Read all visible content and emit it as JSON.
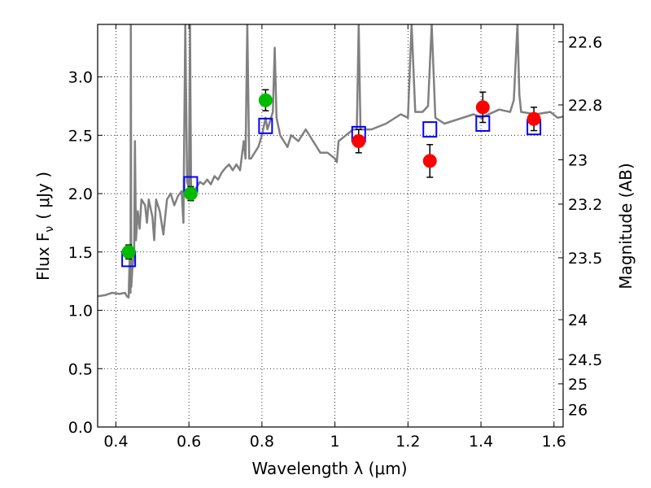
{
  "chart_data": {
    "type": "scatter",
    "xlabel": "Wavelength  λ (μm)",
    "ylabel": "Flux  F",
    "ylabel_sub": "ν",
    "ylabel_unit": "( μJy )",
    "y2label": "Magnitude (AB)",
    "xlim": [
      0.35,
      1.625
    ],
    "ylim": [
      0.0,
      3.45
    ],
    "grid": true,
    "x_ticks": [
      {
        "value": 0.4,
        "label": "0.4"
      },
      {
        "value": 0.6,
        "label": "0.6"
      },
      {
        "value": 0.8,
        "label": "0.8"
      },
      {
        "value": 1.0,
        "label": "1"
      },
      {
        "value": 1.2,
        "label": "1.2"
      },
      {
        "value": 1.4,
        "label": "1.4"
      },
      {
        "value": 1.6,
        "label": "1.6"
      }
    ],
    "y_ticks": [
      {
        "value": 0.0,
        "label": "0.0"
      },
      {
        "value": 0.5,
        "label": "0.5"
      },
      {
        "value": 1.0,
        "label": "1.0"
      },
      {
        "value": 1.5,
        "label": "1.5"
      },
      {
        "value": 2.0,
        "label": "2.0"
      },
      {
        "value": 2.5,
        "label": "2.5"
      },
      {
        "value": 3.0,
        "label": "3.0"
      }
    ],
    "y2_ticks": [
      {
        "flux": 3.3,
        "label": "22.6"
      },
      {
        "flux": 2.76,
        "label": "22.8"
      },
      {
        "flux": 2.29,
        "label": "23"
      },
      {
        "flux": 1.91,
        "label": "23.2"
      },
      {
        "flux": 1.45,
        "label": "23.5"
      },
      {
        "flux": 0.92,
        "label": "24"
      },
      {
        "flux": 0.58,
        "label": "24.5"
      },
      {
        "flux": 0.37,
        "label": "25"
      },
      {
        "flux": 0.15,
        "label": "26"
      }
    ],
    "series": [
      {
        "kind": "model-spectrum",
        "color": "#808080",
        "points": [
          [
            0.35,
            1.12
          ],
          [
            0.37,
            1.13
          ],
          [
            0.39,
            1.15
          ],
          [
            0.41,
            1.14
          ],
          [
            0.425,
            1.15
          ],
          [
            0.43,
            1.12
          ],
          [
            0.435,
            1.11
          ],
          [
            0.438,
            1.5
          ],
          [
            0.44,
            1.15
          ],
          [
            0.441,
            3.45
          ],
          [
            0.442,
            1.2
          ],
          [
            0.445,
            1.35
          ],
          [
            0.45,
            1.5
          ],
          [
            0.452,
            2.45
          ],
          [
            0.455,
            1.6
          ],
          [
            0.46,
            1.85
          ],
          [
            0.465,
            1.7
          ],
          [
            0.47,
            1.95
          ],
          [
            0.48,
            1.9
          ],
          [
            0.485,
            1.75
          ],
          [
            0.49,
            1.95
          ],
          [
            0.5,
            1.8
          ],
          [
            0.505,
            1.6
          ],
          [
            0.51,
            1.95
          ],
          [
            0.52,
            1.85
          ],
          [
            0.53,
            1.65
          ],
          [
            0.54,
            1.95
          ],
          [
            0.55,
            2.0
          ],
          [
            0.56,
            1.9
          ],
          [
            0.57,
            1.98
          ],
          [
            0.58,
            2.02
          ],
          [
            0.585,
            1.75
          ],
          [
            0.59,
            3.45
          ],
          [
            0.595,
            2.1
          ],
          [
            0.6,
            2.05
          ],
          [
            0.603,
            3.45
          ],
          [
            0.606,
            2.05
          ],
          [
            0.61,
            2.0
          ],
          [
            0.62,
            2.05
          ],
          [
            0.63,
            2.1
          ],
          [
            0.64,
            2.08
          ],
          [
            0.65,
            2.12
          ],
          [
            0.66,
            2.08
          ],
          [
            0.67,
            2.15
          ],
          [
            0.68,
            2.12
          ],
          [
            0.69,
            2.18
          ],
          [
            0.7,
            2.22
          ],
          [
            0.71,
            2.25
          ],
          [
            0.72,
            2.2
          ],
          [
            0.73,
            2.25
          ],
          [
            0.74,
            2.2
          ],
          [
            0.75,
            2.45
          ],
          [
            0.755,
            2.3
          ],
          [
            0.76,
            3.45
          ],
          [
            0.765,
            2.3
          ],
          [
            0.77,
            2.3
          ],
          [
            0.78,
            2.35
          ],
          [
            0.79,
            2.4
          ],
          [
            0.8,
            2.5
          ],
          [
            0.81,
            2.65
          ],
          [
            0.815,
            2.55
          ],
          [
            0.82,
            2.6
          ],
          [
            0.83,
            2.7
          ],
          [
            0.835,
            3.25
          ],
          [
            0.84,
            2.65
          ],
          [
            0.85,
            2.5
          ],
          [
            0.86,
            2.45
          ],
          [
            0.87,
            2.4
          ],
          [
            0.88,
            2.5
          ],
          [
            0.9,
            2.45
          ],
          [
            0.92,
            2.55
          ],
          [
            0.94,
            2.45
          ],
          [
            0.96,
            2.35
          ],
          [
            0.98,
            2.35
          ],
          [
            1.0,
            2.3
          ],
          [
            1.005,
            2.27
          ],
          [
            1.01,
            2.45
          ],
          [
            1.03,
            2.5
          ],
          [
            1.05,
            2.55
          ],
          [
            1.06,
            2.55
          ],
          [
            1.065,
            3.45
          ],
          [
            1.07,
            2.55
          ],
          [
            1.1,
            2.55
          ],
          [
            1.14,
            2.6
          ],
          [
            1.18,
            2.68
          ],
          [
            1.2,
            2.65
          ],
          [
            1.21,
            3.45
          ],
          [
            1.22,
            2.7
          ],
          [
            1.24,
            2.7
          ],
          [
            1.255,
            2.75
          ],
          [
            1.265,
            3.45
          ],
          [
            1.275,
            2.65
          ],
          [
            1.3,
            2.6
          ],
          [
            1.35,
            2.65
          ],
          [
            1.38,
            2.68
          ],
          [
            1.4,
            2.65
          ],
          [
            1.45,
            2.72
          ],
          [
            1.48,
            2.7
          ],
          [
            1.49,
            2.8
          ],
          [
            1.5,
            3.45
          ],
          [
            1.505,
            2.85
          ],
          [
            1.51,
            2.7
          ],
          [
            1.55,
            2.68
          ],
          [
            1.59,
            2.7
          ],
          [
            1.61,
            2.65
          ],
          [
            1.625,
            2.66
          ]
        ]
      },
      {
        "kind": "model-photometry",
        "marker": "open-square",
        "color": "#0000ff",
        "x": [
          0.435,
          0.605,
          0.81,
          1.065,
          1.26,
          1.405,
          1.545
        ],
        "y": [
          1.44,
          2.08,
          2.58,
          2.51,
          2.55,
          2.6,
          2.57
        ]
      },
      {
        "kind": "optical-photometry",
        "marker": "filled-circle",
        "color": "#00bb00",
        "x": [
          0.435,
          0.605,
          0.81
        ],
        "y": [
          1.5,
          2.0,
          2.8
        ],
        "err": [
          0.06,
          0.06,
          0.09
        ]
      },
      {
        "kind": "nir-photometry",
        "marker": "filled-circle",
        "color": "#ff0000",
        "x": [
          1.065,
          1.26,
          1.405,
          1.545
        ],
        "y": [
          2.45,
          2.28,
          2.74,
          2.64
        ],
        "err": [
          0.1,
          0.14,
          0.13,
          0.1
        ]
      }
    ]
  }
}
